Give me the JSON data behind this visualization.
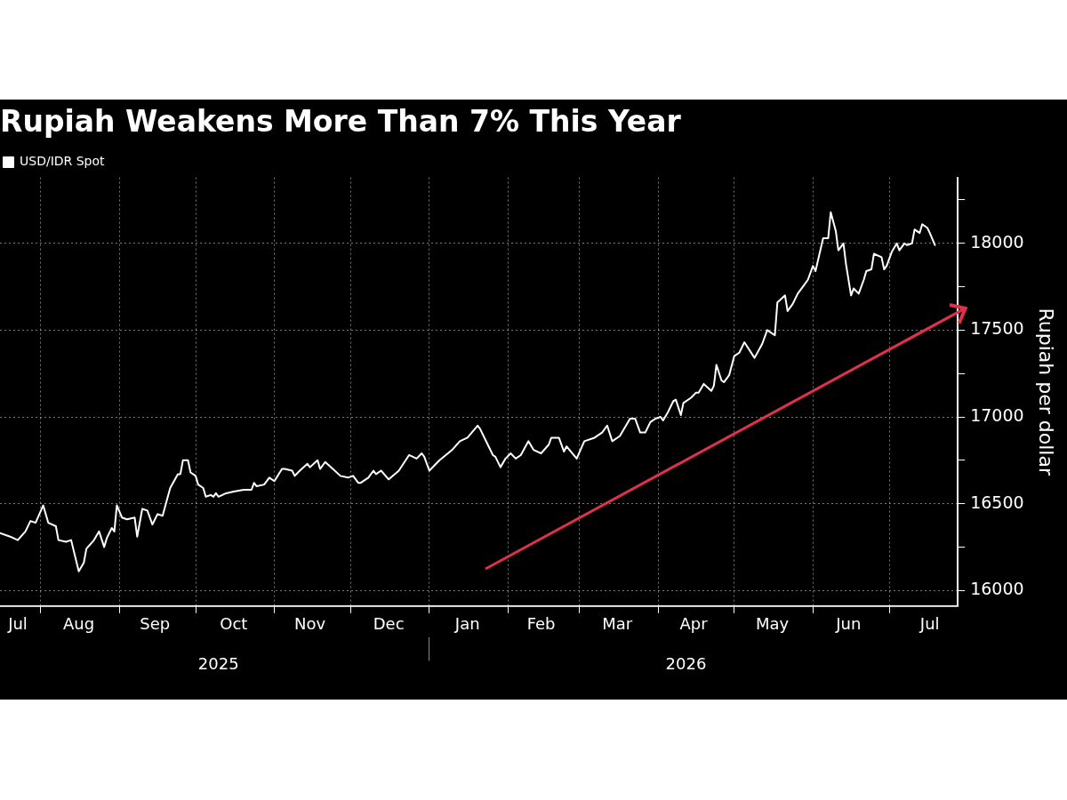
{
  "chart_data": {
    "type": "line",
    "title": "Rupiah Weakens More Than 7% This Year",
    "ylabel": "Rupiah per dollar",
    "legend": "top left",
    "grid": true,
    "marker": "none",
    "line_style": "solid",
    "xlim": [
      "2025-07-16",
      "2026-07-28"
    ],
    "xticks": [
      {
        "value": "2025-07-23",
        "label": "Jul"
      },
      {
        "value": "2025-08-01",
        "label": null
      },
      {
        "value": "2025-08-16",
        "label": "Aug"
      },
      {
        "value": "2025-09-01",
        "label": null
      },
      {
        "value": "2025-09-15",
        "label": "Sep"
      },
      {
        "value": "2025-10-01",
        "label": null
      },
      {
        "value": "2025-10-16",
        "label": "Oct"
      },
      {
        "value": "2025-11-01",
        "label": null
      },
      {
        "value": "2025-11-15",
        "label": "Nov"
      },
      {
        "value": "2025-12-01",
        "label": null
      },
      {
        "value": "2025-12-16",
        "label": "Dec"
      },
      {
        "value": "2026-01-01",
        "label": null
      },
      {
        "value": "2026-01-16",
        "label": "Jan"
      },
      {
        "value": "2026-02-01",
        "label": null
      },
      {
        "value": "2026-02-14",
        "label": "Feb"
      },
      {
        "value": "2026-03-01",
        "label": null
      },
      {
        "value": "2026-03-16",
        "label": "Mar"
      },
      {
        "value": "2026-04-01",
        "label": null
      },
      {
        "value": "2026-04-15",
        "label": "Apr"
      },
      {
        "value": "2026-05-01",
        "label": null
      },
      {
        "value": "2026-05-16",
        "label": "May"
      },
      {
        "value": "2026-06-01",
        "label": null
      },
      {
        "value": "2026-06-15",
        "label": "Jun"
      },
      {
        "value": "2026-07-01",
        "label": null
      },
      {
        "value": "2026-07-17",
        "label": "Jul"
      }
    ],
    "x2lim": [
      "2025-07-16",
      "2026-07-28"
    ],
    "x2ticks": [
      {
        "value": "2025-10-10",
        "label": "2025"
      },
      {
        "value": "2026-01-01",
        "label": null
      },
      {
        "value": "2026-04-12",
        "label": "2026"
      }
    ],
    "ylim": [
      15910,
      18380
    ],
    "yticks": [
      16000,
      {
        "value": 16250,
        "label": null
      },
      16500,
      {
        "value": 16750,
        "label": null
      },
      17000,
      {
        "value": 17250,
        "label": null
      },
      17500,
      {
        "value": 17750,
        "label": null
      },
      18000,
      {
        "value": 18250,
        "label": null
      }
    ],
    "series": [
      {
        "name": "USD/IDR Spot",
        "color": "#ffffff",
        "x": [
          "2025-07-16",
          "2025-07-20",
          "2025-07-23",
          "2025-07-26",
          "2025-07-28",
          "2025-07-30",
          "2025-08-02",
          "2025-08-04",
          "2025-08-07",
          "2025-08-08",
          "2025-08-11",
          "2025-08-13",
          "2025-08-16",
          "2025-08-18",
          "2025-08-19",
          "2025-08-22",
          "2025-08-24",
          "2025-08-26",
          "2025-08-27",
          "2025-08-29",
          "2025-08-30",
          "2025-08-31",
          "2025-09-02",
          "2025-09-04",
          "2025-09-07",
          "2025-09-08",
          "2025-09-10",
          "2025-09-12",
          "2025-09-14",
          "2025-09-16",
          "2025-09-18",
          "2025-09-21",
          "2025-09-24",
          "2025-09-25",
          "2025-09-26",
          "2025-09-28",
          "2025-09-29",
          "2025-10-01",
          "2025-10-02",
          "2025-10-04",
          "2025-10-05",
          "2025-10-07",
          "2025-10-08",
          "2025-10-09",
          "2025-10-10",
          "2025-10-13",
          "2025-10-16",
          "2025-10-20",
          "2025-10-23",
          "2025-10-24",
          "2025-10-25",
          "2025-10-28",
          "2025-10-30",
          "2025-11-01",
          "2025-11-04",
          "2025-11-05",
          "2025-11-08",
          "2025-11-09",
          "2025-11-11",
          "2025-11-14",
          "2025-11-15",
          "2025-11-18",
          "2025-11-19",
          "2025-11-21",
          "2025-11-24",
          "2025-11-27",
          "2025-11-30",
          "2025-12-02",
          "2025-12-04",
          "2025-12-05",
          "2025-12-08",
          "2025-12-10",
          "2025-12-11",
          "2025-12-13",
          "2025-12-16",
          "2025-12-20",
          "2025-12-24",
          "2025-12-27",
          "2025-12-29",
          "2025-12-30",
          "2026-01-01",
          "2026-01-05",
          "2026-01-10",
          "2026-01-13",
          "2026-01-16",
          "2026-01-20",
          "2026-01-21",
          "2026-01-24",
          "2026-01-26",
          "2026-01-27",
          "2026-01-29",
          "2026-01-31",
          "2026-02-02",
          "2026-02-04",
          "2026-02-06",
          "2026-02-09",
          "2026-02-11",
          "2026-02-14",
          "2026-02-17",
          "2026-02-18",
          "2026-02-21",
          "2026-02-23",
          "2026-02-24",
          "2026-02-28",
          "2026-03-03",
          "2026-03-07",
          "2026-03-10",
          "2026-03-12",
          "2026-03-14",
          "2026-03-17",
          "2026-03-21",
          "2026-03-23",
          "2026-03-25",
          "2026-03-27",
          "2026-03-29",
          "2026-03-31",
          "2026-04-02",
          "2026-04-03",
          "2026-04-05",
          "2026-04-07",
          "2026-04-08",
          "2026-04-10",
          "2026-04-11",
          "2026-04-14",
          "2026-04-16",
          "2026-04-17",
          "2026-04-19",
          "2026-04-22",
          "2026-04-23",
          "2026-04-24",
          "2026-04-26",
          "2026-04-27",
          "2026-04-29",
          "2026-05-01",
          "2026-05-03",
          "2026-05-05",
          "2026-05-09",
          "2026-05-12",
          "2026-05-14",
          "2026-05-17",
          "2026-05-18",
          "2026-05-21",
          "2026-05-22",
          "2026-05-24",
          "2026-05-26",
          "2026-05-28",
          "2026-05-30",
          "2026-06-01",
          "2026-06-02",
          "2026-06-05",
          "2026-06-07",
          "2026-06-08",
          "2026-06-10",
          "2026-06-11",
          "2026-06-13",
          "2026-06-14",
          "2026-06-16",
          "2026-06-17",
          "2026-06-19",
          "2026-06-21",
          "2026-06-22",
          "2026-06-24",
          "2026-06-25",
          "2026-06-28",
          "2026-06-29",
          "2026-06-30",
          "2026-07-02",
          "2026-07-04",
          "2026-07-05",
          "2026-07-07",
          "2026-07-08",
          "2026-07-10",
          "2026-07-11",
          "2026-07-13",
          "2026-07-14",
          "2026-07-16",
          "2026-07-17",
          "2026-07-19"
        ],
        "values": [
          16330,
          16310,
          16290,
          16340,
          16400,
          16390,
          16490,
          16390,
          16370,
          16290,
          16280,
          16290,
          16110,
          16160,
          16240,
          16290,
          16340,
          16250,
          16300,
          16360,
          16340,
          16490,
          16420,
          16410,
          16420,
          16310,
          16470,
          16460,
          16380,
          16440,
          16430,
          16590,
          16670,
          16670,
          16750,
          16750,
          16680,
          16660,
          16610,
          16590,
          16540,
          16550,
          16540,
          16560,
          16540,
          16560,
          16570,
          16580,
          16580,
          16620,
          16600,
          16610,
          16650,
          16630,
          16700,
          16700,
          16690,
          16660,
          16690,
          16730,
          16710,
          16750,
          16700,
          16740,
          16700,
          16660,
          16650,
          16660,
          16620,
          16620,
          16650,
          16690,
          16670,
          16690,
          16640,
          16690,
          16780,
          16760,
          16790,
          16770,
          16690,
          16750,
          16810,
          16860,
          16880,
          16950,
          16930,
          16840,
          16780,
          16770,
          16710,
          16760,
          16790,
          16760,
          16780,
          16860,
          16810,
          16790,
          16840,
          16880,
          16880,
          16800,
          16830,
          16760,
          16860,
          16880,
          16910,
          16950,
          16860,
          16890,
          16990,
          16990,
          16910,
          16910,
          16970,
          16990,
          17000,
          16980,
          17030,
          17090,
          17100,
          17010,
          17080,
          17110,
          17140,
          17140,
          17190,
          17150,
          17180,
          17300,
          17210,
          17200,
          17240,
          17350,
          17370,
          17430,
          17340,
          17420,
          17500,
          17470,
          17660,
          17700,
          17610,
          17650,
          17710,
          17750,
          17790,
          17870,
          17840,
          18030,
          18030,
          18180,
          18070,
          17960,
          18000,
          17880,
          17700,
          17740,
          17710,
          17790,
          17840,
          17850,
          17940,
          17920,
          17850,
          17870,
          17950,
          18000,
          17960,
          18000,
          17990,
          18000,
          18080,
          18060,
          18110,
          18090,
          18060,
          17990
        ]
      }
    ]
  }
}
